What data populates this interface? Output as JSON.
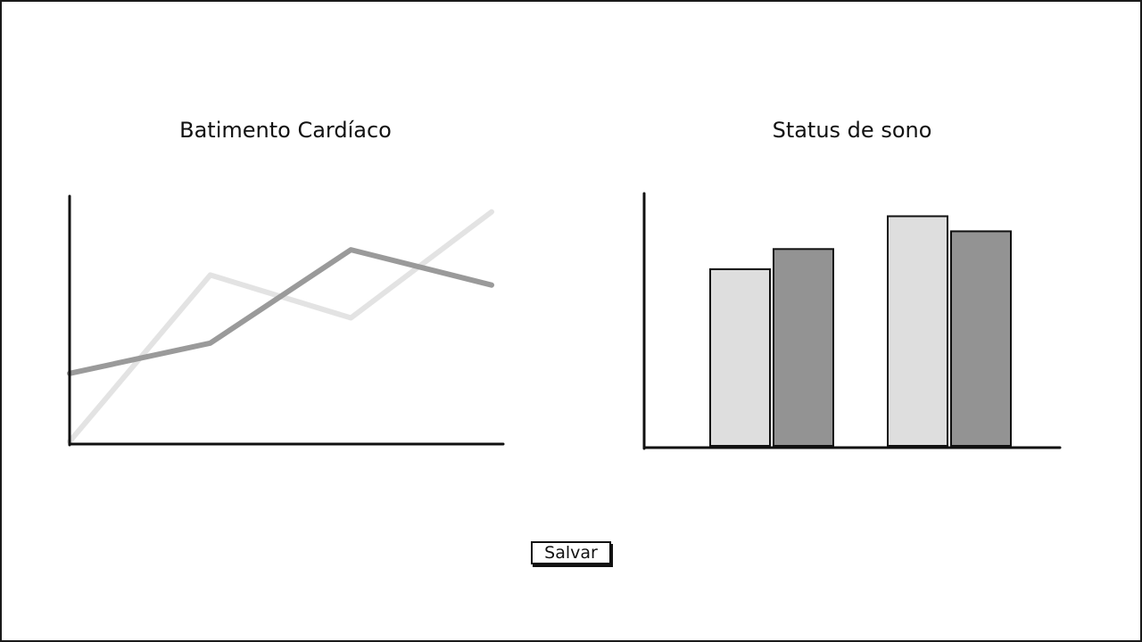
{
  "chart_data": [
    {
      "type": "line",
      "title": "Batimento Cardíaco",
      "xlabel": "",
      "ylabel": "",
      "x": [
        0,
        1,
        2,
        3
      ],
      "ylim": [
        0,
        10
      ],
      "grid": false,
      "series": [
        {
          "values": [
            0.1,
            6.7,
            5.0,
            9.2
          ],
          "color": "#e3e3e3"
        },
        {
          "values": [
            2.8,
            4.0,
            7.7,
            6.3
          ],
          "color": "#9a9a9a"
        }
      ]
    },
    {
      "type": "bar",
      "title": "Status de sono",
      "xlabel": "",
      "ylabel": "",
      "categories": [
        "",
        ""
      ],
      "ylim": [
        0,
        10
      ],
      "grid": false,
      "series": [
        {
          "values": [
            7.0,
            9.1
          ],
          "color": "#dedede"
        },
        {
          "values": [
            7.8,
            8.5
          ],
          "color": "#939393"
        }
      ]
    }
  ],
  "actions": {
    "save_label": "Salvar"
  }
}
